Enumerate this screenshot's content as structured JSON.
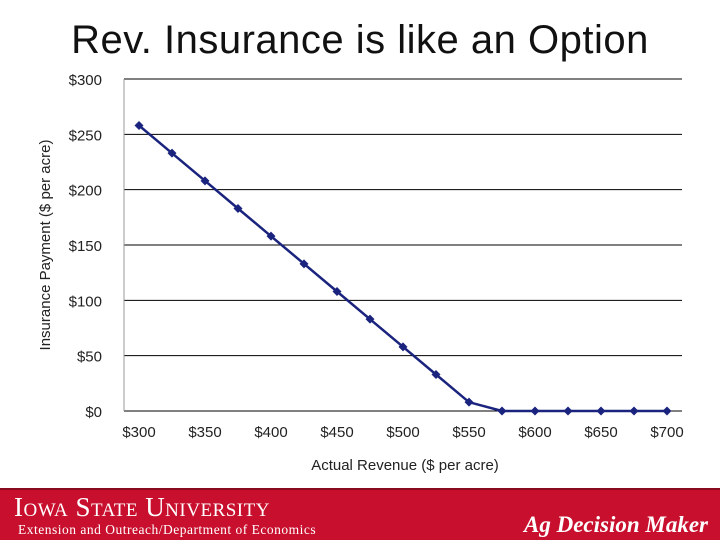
{
  "slide": {
    "title": "Rev. Insurance is like an Option"
  },
  "chart_data": {
    "type": "line",
    "title": "",
    "xlabel": "Actual Revenue ($ per acre)",
    "ylabel": "Insurance Payment ($ per acre)",
    "xlim": [
      300,
      700
    ],
    "ylim": [
      0,
      300
    ],
    "x_ticks": [
      "$300",
      "$350",
      "$400",
      "$450",
      "$500",
      "$550",
      "$600",
      "$650",
      "$700"
    ],
    "y_ticks": [
      "$0",
      "$50",
      "$100",
      "$150",
      "$200",
      "$250",
      "$300"
    ],
    "grid": "horizontal",
    "series_color": "#1a237e",
    "series": [
      {
        "x": [
          300,
          325,
          350,
          375,
          400,
          425,
          450,
          475,
          500,
          525,
          550,
          575,
          600,
          625,
          650,
          675,
          700
        ],
        "y": [
          258,
          233,
          208,
          183,
          158,
          133,
          108,
          83,
          58,
          33,
          8,
          0,
          0,
          0,
          0,
          0,
          0
        ]
      }
    ]
  },
  "footer": {
    "university": "Iowa State University",
    "department": "Extension and Outreach/Department of Economics",
    "brand": "Ag Decision Maker",
    "color": "#c8102e"
  }
}
